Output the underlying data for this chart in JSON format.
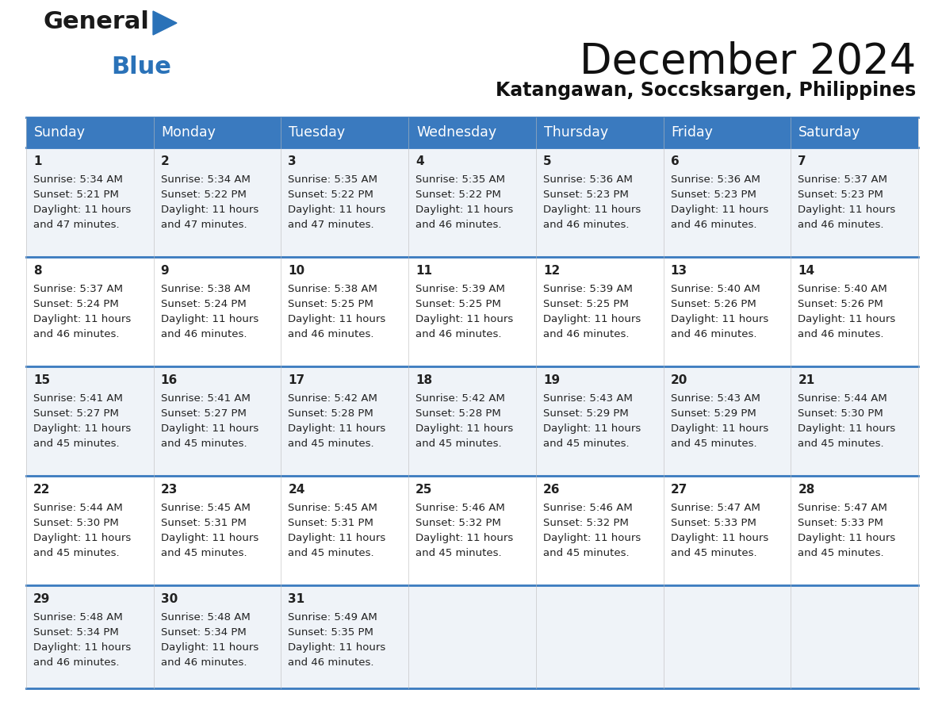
{
  "title": "December 2024",
  "subtitle": "Katangawan, Soccsksargen, Philippines",
  "header_color": "#3a7abf",
  "header_text_color": "#ffffff",
  "days_of_week": [
    "Sunday",
    "Monday",
    "Tuesday",
    "Wednesday",
    "Thursday",
    "Friday",
    "Saturday"
  ],
  "row_bg_odd": "#eff3f8",
  "row_bg_even": "#ffffff",
  "border_color": "#3a7abf",
  "text_color": "#222222",
  "calendar_data": [
    [
      {
        "day": 1,
        "sunrise": "5:34 AM",
        "sunset": "5:21 PM",
        "daylight_hours": 11,
        "daylight_minutes": 47
      },
      {
        "day": 2,
        "sunrise": "5:34 AM",
        "sunset": "5:22 PM",
        "daylight_hours": 11,
        "daylight_minutes": 47
      },
      {
        "day": 3,
        "sunrise": "5:35 AM",
        "sunset": "5:22 PM",
        "daylight_hours": 11,
        "daylight_minutes": 47
      },
      {
        "day": 4,
        "sunrise": "5:35 AM",
        "sunset": "5:22 PM",
        "daylight_hours": 11,
        "daylight_minutes": 46
      },
      {
        "day": 5,
        "sunrise": "5:36 AM",
        "sunset": "5:23 PM",
        "daylight_hours": 11,
        "daylight_minutes": 46
      },
      {
        "day": 6,
        "sunrise": "5:36 AM",
        "sunset": "5:23 PM",
        "daylight_hours": 11,
        "daylight_minutes": 46
      },
      {
        "day": 7,
        "sunrise": "5:37 AM",
        "sunset": "5:23 PM",
        "daylight_hours": 11,
        "daylight_minutes": 46
      }
    ],
    [
      {
        "day": 8,
        "sunrise": "5:37 AM",
        "sunset": "5:24 PM",
        "daylight_hours": 11,
        "daylight_minutes": 46
      },
      {
        "day": 9,
        "sunrise": "5:38 AM",
        "sunset": "5:24 PM",
        "daylight_hours": 11,
        "daylight_minutes": 46
      },
      {
        "day": 10,
        "sunrise": "5:38 AM",
        "sunset": "5:25 PM",
        "daylight_hours": 11,
        "daylight_minutes": 46
      },
      {
        "day": 11,
        "sunrise": "5:39 AM",
        "sunset": "5:25 PM",
        "daylight_hours": 11,
        "daylight_minutes": 46
      },
      {
        "day": 12,
        "sunrise": "5:39 AM",
        "sunset": "5:25 PM",
        "daylight_hours": 11,
        "daylight_minutes": 46
      },
      {
        "day": 13,
        "sunrise": "5:40 AM",
        "sunset": "5:26 PM",
        "daylight_hours": 11,
        "daylight_minutes": 46
      },
      {
        "day": 14,
        "sunrise": "5:40 AM",
        "sunset": "5:26 PM",
        "daylight_hours": 11,
        "daylight_minutes": 46
      }
    ],
    [
      {
        "day": 15,
        "sunrise": "5:41 AM",
        "sunset": "5:27 PM",
        "daylight_hours": 11,
        "daylight_minutes": 45
      },
      {
        "day": 16,
        "sunrise": "5:41 AM",
        "sunset": "5:27 PM",
        "daylight_hours": 11,
        "daylight_minutes": 45
      },
      {
        "day": 17,
        "sunrise": "5:42 AM",
        "sunset": "5:28 PM",
        "daylight_hours": 11,
        "daylight_minutes": 45
      },
      {
        "day": 18,
        "sunrise": "5:42 AM",
        "sunset": "5:28 PM",
        "daylight_hours": 11,
        "daylight_minutes": 45
      },
      {
        "day": 19,
        "sunrise": "5:43 AM",
        "sunset": "5:29 PM",
        "daylight_hours": 11,
        "daylight_minutes": 45
      },
      {
        "day": 20,
        "sunrise": "5:43 AM",
        "sunset": "5:29 PM",
        "daylight_hours": 11,
        "daylight_minutes": 45
      },
      {
        "day": 21,
        "sunrise": "5:44 AM",
        "sunset": "5:30 PM",
        "daylight_hours": 11,
        "daylight_minutes": 45
      }
    ],
    [
      {
        "day": 22,
        "sunrise": "5:44 AM",
        "sunset": "5:30 PM",
        "daylight_hours": 11,
        "daylight_minutes": 45
      },
      {
        "day": 23,
        "sunrise": "5:45 AM",
        "sunset": "5:31 PM",
        "daylight_hours": 11,
        "daylight_minutes": 45
      },
      {
        "day": 24,
        "sunrise": "5:45 AM",
        "sunset": "5:31 PM",
        "daylight_hours": 11,
        "daylight_minutes": 45
      },
      {
        "day": 25,
        "sunrise": "5:46 AM",
        "sunset": "5:32 PM",
        "daylight_hours": 11,
        "daylight_minutes": 45
      },
      {
        "day": 26,
        "sunrise": "5:46 AM",
        "sunset": "5:32 PM",
        "daylight_hours": 11,
        "daylight_minutes": 45
      },
      {
        "day": 27,
        "sunrise": "5:47 AM",
        "sunset": "5:33 PM",
        "daylight_hours": 11,
        "daylight_minutes": 45
      },
      {
        "day": 28,
        "sunrise": "5:47 AM",
        "sunset": "5:33 PM",
        "daylight_hours": 11,
        "daylight_minutes": 45
      }
    ],
    [
      {
        "day": 29,
        "sunrise": "5:48 AM",
        "sunset": "5:34 PM",
        "daylight_hours": 11,
        "daylight_minutes": 46
      },
      {
        "day": 30,
        "sunrise": "5:48 AM",
        "sunset": "5:34 PM",
        "daylight_hours": 11,
        "daylight_minutes": 46
      },
      {
        "day": 31,
        "sunrise": "5:49 AM",
        "sunset": "5:35 PM",
        "daylight_hours": 11,
        "daylight_minutes": 46
      },
      null,
      null,
      null,
      null
    ]
  ],
  "logo_color_general": "#1a1a1a",
  "logo_color_blue": "#2a72b8",
  "logo_triangle_color": "#2a72b8"
}
